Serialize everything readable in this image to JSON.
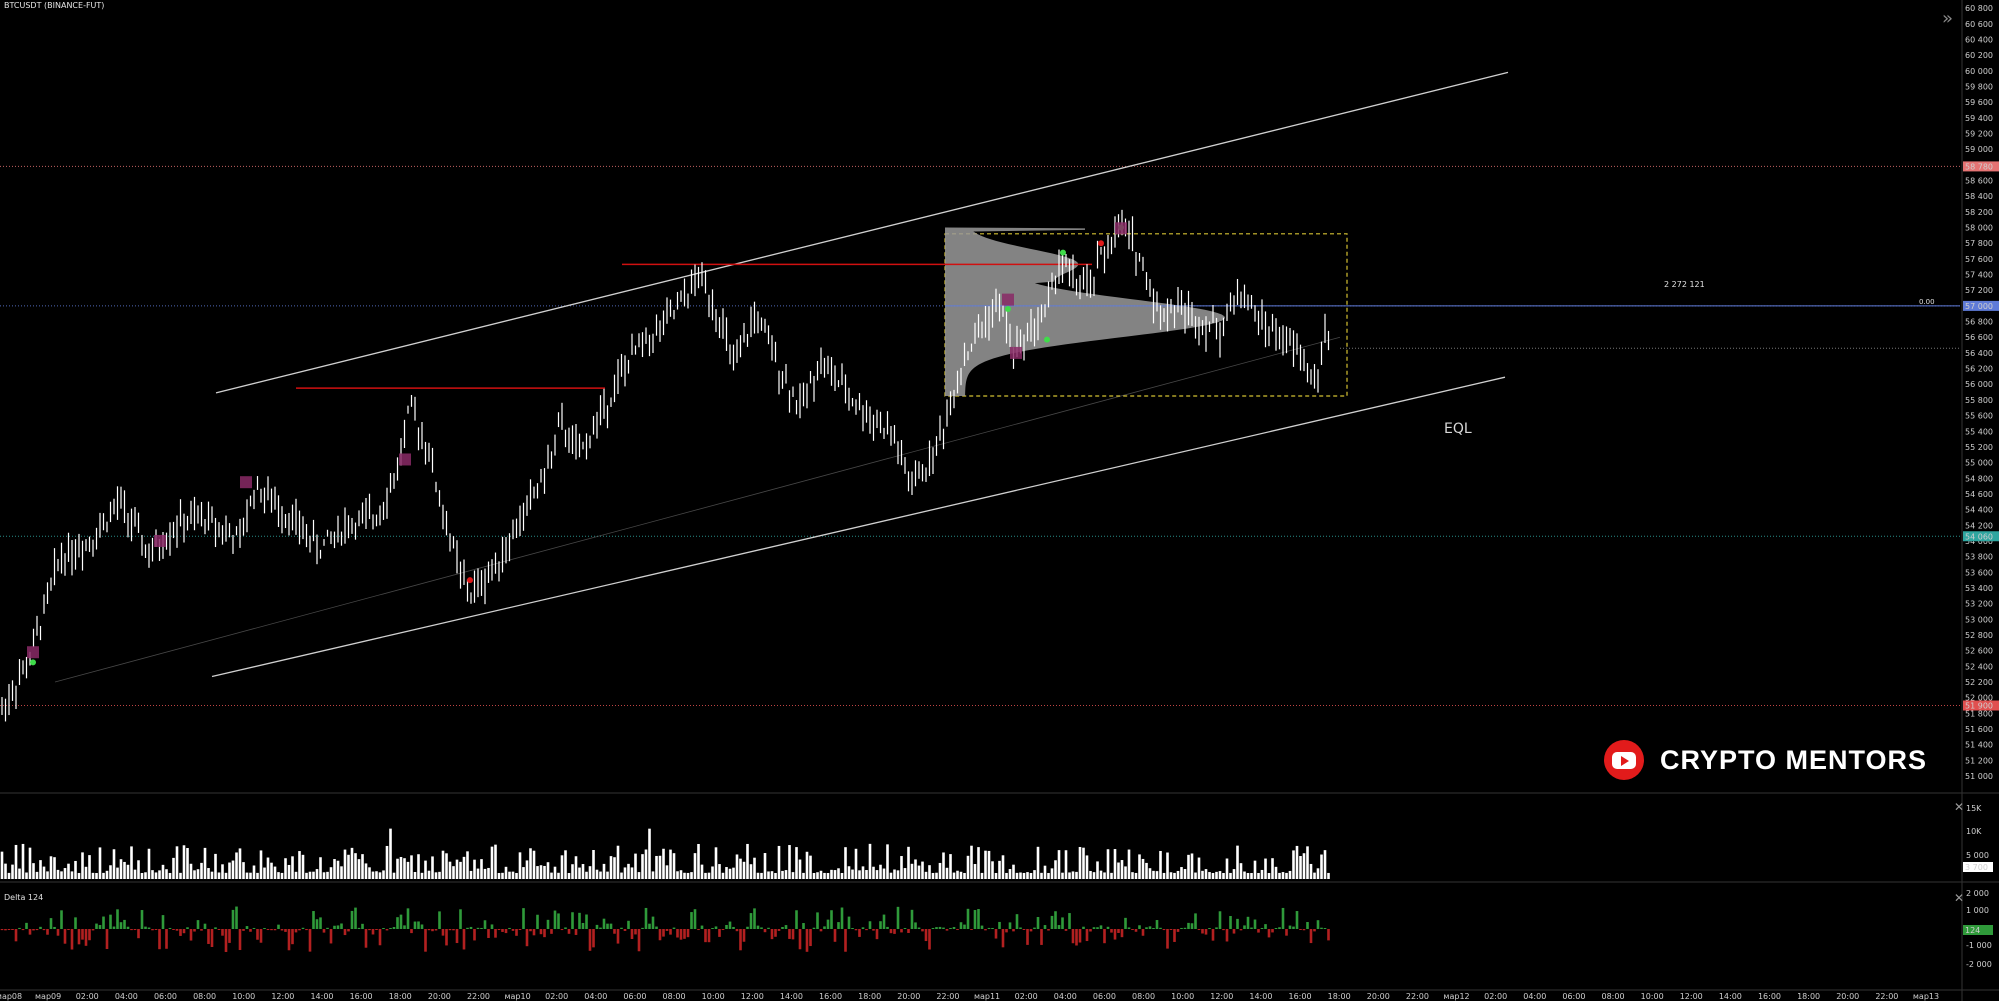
{
  "title": "BTCUSDT (BINANCE-FUT)",
  "brand": {
    "text": "CRYPTO MENTORS",
    "icon": "youtube-icon"
  },
  "annotations": {
    "eql": "EQL",
    "note": "2 272 121",
    "note_small": "0.00"
  },
  "delta_label": "Delta  124",
  "colors": {
    "background": "#000000",
    "bars": "#ffffff",
    "resistance": "#d01010",
    "channel": "#d0d0d0",
    "box": "#d4c132",
    "volume_profile": "#9a9a9a",
    "delta_up": "#2f9a3a",
    "delta_down": "#b32020",
    "last_price": "#5f7bd8"
  },
  "chart_data": {
    "type": "bar",
    "symbol": "BTCUSDT (BINANCE-FUT)",
    "y_axis": {
      "ticks": [
        51000,
        51200,
        51400,
        51600,
        51800,
        52000,
        52200,
        52400,
        52600,
        52800,
        53000,
        53200,
        53400,
        53600,
        53800,
        54000,
        54200,
        54400,
        54600,
        54800,
        55000,
        55200,
        55400,
        55600,
        55800,
        56000,
        56200,
        56400,
        56600,
        56800,
        57000,
        57200,
        57400,
        57600,
        57800,
        58000,
        58200,
        58400,
        58600,
        58800,
        59000,
        59200,
        59400,
        59600,
        59800,
        60000,
        60200,
        60400,
        60600,
        60800
      ],
      "labels": [
        "51 000",
        "51 200",
        "51 400",
        "51 600",
        "51 800",
        "52 000",
        "52 200",
        "52 400",
        "52 600",
        "52 800",
        "53 000",
        "53 200",
        "53 400",
        "53 600",
        "53 800",
        "54 000",
        "54 200",
        "54 400",
        "54 600",
        "54 800",
        "55 000",
        "55 200",
        "55 400",
        "55 600",
        "55 800",
        "56 000",
        "56 200",
        "56 400",
        "56 600",
        "56 800",
        "57 000",
        "57 200",
        "57 400",
        "57 600",
        "57 800",
        "58 000",
        "58 200",
        "58 400",
        "58 600",
        "58 800",
        "59 000",
        "59 200",
        "59 400",
        "59 600",
        "59 800",
        "60 000",
        "60 200",
        "60 400",
        "60 600",
        "60 800"
      ],
      "range": [
        50860,
        60840
      ]
    },
    "price_tags": [
      {
        "value": 58780,
        "label": "58 780",
        "color": "#e57373"
      },
      {
        "value": 57000,
        "label": "57 000",
        "color": "#5f7bd8"
      },
      {
        "value": 54060,
        "label": "54 060",
        "color": "#2fa6a0"
      },
      {
        "value": 51900,
        "label": "51 900",
        "color": "#e05050"
      }
    ],
    "x_axis": {
      "labels": [
        "мар08",
        "мар09",
        "02:00",
        "04:00",
        "06:00",
        "08:00",
        "10:00",
        "12:00",
        "14:00",
        "16:00",
        "18:00",
        "20:00",
        "22:00",
        "мар10",
        "02:00",
        "04:00",
        "06:00",
        "08:00",
        "10:00",
        "12:00",
        "14:00",
        "16:00",
        "18:00",
        "20:00",
        "22:00",
        "мар11",
        "02:00",
        "04:00",
        "06:00",
        "08:00",
        "10:00",
        "12:00",
        "14:00",
        "16:00",
        "18:00",
        "20:00",
        "22:00",
        "мар12",
        "02:00",
        "04:00",
        "06:00",
        "08:00",
        "10:00",
        "12:00",
        "14:00",
        "16:00",
        "18:00",
        "20:00",
        "22:00",
        "мар13"
      ]
    },
    "series_path": [
      [
        0,
        51800
      ],
      [
        30,
        52500
      ],
      [
        60,
        53800
      ],
      [
        90,
        54000
      ],
      [
        120,
        54500
      ],
      [
        150,
        53800
      ],
      [
        175,
        54200
      ],
      [
        205,
        54300
      ],
      [
        240,
        54000
      ],
      [
        255,
        54700
      ],
      [
        290,
        54300
      ],
      [
        320,
        53900
      ],
      [
        345,
        54200
      ],
      [
        375,
        54300
      ],
      [
        395,
        54800
      ],
      [
        410,
        55700
      ],
      [
        428,
        55200
      ],
      [
        440,
        54500
      ],
      [
        460,
        53600
      ],
      [
        470,
        53300
      ],
      [
        490,
        53600
      ],
      [
        510,
        54000
      ],
      [
        530,
        54500
      ],
      [
        550,
        55000
      ],
      [
        560,
        55500
      ],
      [
        580,
        55100
      ],
      [
        600,
        55600
      ],
      [
        620,
        56100
      ],
      [
        640,
        56500
      ],
      [
        660,
        56700
      ],
      [
        680,
        57000
      ],
      [
        700,
        57400
      ],
      [
        715,
        57000
      ],
      [
        735,
        56200
      ],
      [
        755,
        56900
      ],
      [
        780,
        56200
      ],
      [
        800,
        55700
      ],
      [
        820,
        56300
      ],
      [
        840,
        56000
      ],
      [
        860,
        55700
      ],
      [
        880,
        55500
      ],
      [
        895,
        55300
      ],
      [
        910,
        54700
      ],
      [
        930,
        55000
      ],
      [
        945,
        55500
      ],
      [
        960,
        56200
      ],
      [
        975,
        56600
      ],
      [
        990,
        56900
      ],
      [
        1000,
        57000
      ],
      [
        1015,
        56400
      ],
      [
        1030,
        56700
      ],
      [
        1045,
        56900
      ],
      [
        1060,
        57600
      ],
      [
        1075,
        57300
      ],
      [
        1090,
        57200
      ],
      [
        1100,
        57600
      ],
      [
        1115,
        57900
      ],
      [
        1125,
        58000
      ],
      [
        1140,
        57600
      ],
      [
        1160,
        56900
      ],
      [
        1180,
        57000
      ],
      [
        1200,
        56800
      ],
      [
        1220,
        56700
      ],
      [
        1240,
        57200
      ],
      [
        1260,
        56800
      ],
      [
        1280,
        56600
      ],
      [
        1300,
        56400
      ],
      [
        1315,
        56000
      ],
      [
        1325,
        56600
      ]
    ],
    "resistance_lines": [
      {
        "from": [
          296,
          55950
        ],
        "to": [
          605,
          55950
        ]
      },
      {
        "from": [
          622,
          57530
        ],
        "to": [
          1092,
          57530
        ]
      }
    ],
    "box": {
      "x_from": 945,
      "x_to": 1347,
      "y_from": 55850,
      "y_to": 57920
    },
    "last_price": 57000,
    "volume": {
      "ticks": [
        "15K",
        "10K",
        "5 000"
      ],
      "last_label": "3 700"
    },
    "delta": {
      "ticks": [
        "2 000",
        "1 000",
        "124",
        "-1 000",
        "-2 000"
      ],
      "last_label": "124"
    }
  }
}
